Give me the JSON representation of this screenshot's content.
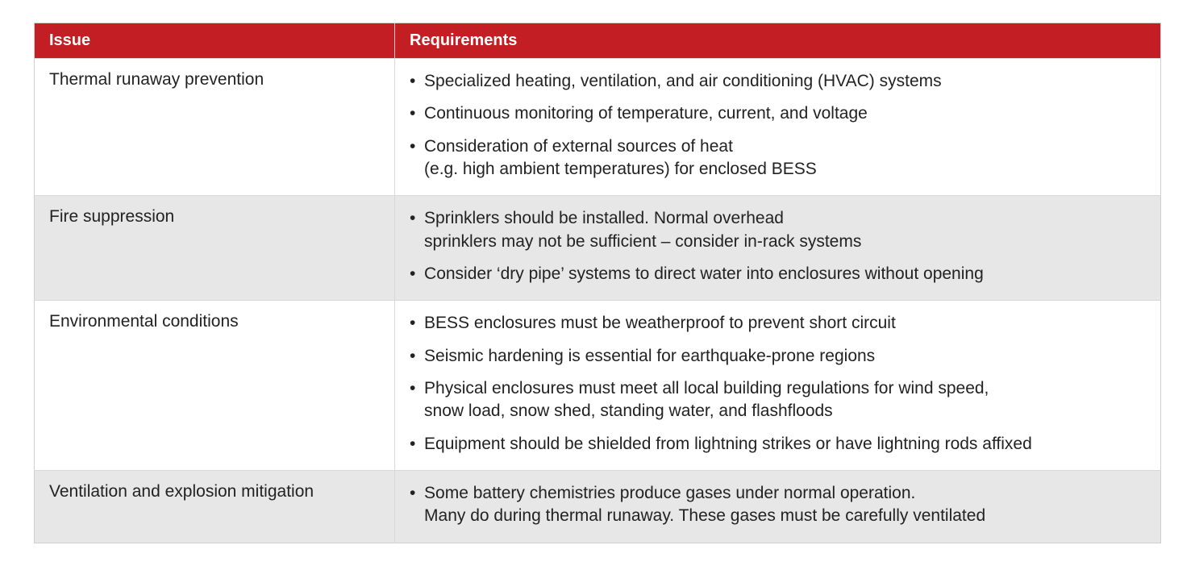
{
  "colors": {
    "header_bg": "#c31e23",
    "header_text": "#ffffff",
    "row_alt_bg": "#e7e7e7",
    "row_plain_bg": "#ffffff",
    "border": "#d8d8d8",
    "text": "#222222"
  },
  "table": {
    "columns": [
      {
        "key": "issue",
        "label": "Issue",
        "width_pct": 32
      },
      {
        "key": "requirements",
        "label": "Requirements",
        "width_pct": 68
      }
    ],
    "rows": [
      {
        "alt": false,
        "issue": "Thermal runaway prevention",
        "requirements": [
          [
            "Specialized heating, ventilation, and air conditioning (HVAC) systems"
          ],
          [
            "Continuous monitoring of temperature, current, and voltage"
          ],
          [
            "Consideration of external sources of heat",
            "(e.g. high ambient temperatures) for enclosed BESS"
          ]
        ]
      },
      {
        "alt": true,
        "issue": "Fire suppression",
        "requirements": [
          [
            "Sprinklers should be installed. Normal overhead",
            "sprinklers may not be sufficient – consider in-rack systems"
          ],
          [
            "Consider ‘dry pipe’ systems to direct water into enclosures without opening"
          ]
        ]
      },
      {
        "alt": false,
        "issue": "Environmental conditions",
        "requirements": [
          [
            "BESS enclosures must be weatherproof to prevent short circuit"
          ],
          [
            "Seismic hardening is essential for earthquake-prone regions"
          ],
          [
            "Physical enclosures must meet all local building regulations for wind speed,",
            "snow load, snow shed, standing water, and flashfloods"
          ],
          [
            "Equipment should be shielded from lightning strikes or have lightning rods affixed"
          ]
        ]
      },
      {
        "alt": true,
        "issue": "Ventilation and explosion mitigation",
        "requirements": [
          [
            "Some battery chemistries produce gases under normal operation.",
            "Many do during thermal runaway. These gases must be carefully ventilated"
          ]
        ]
      }
    ]
  }
}
